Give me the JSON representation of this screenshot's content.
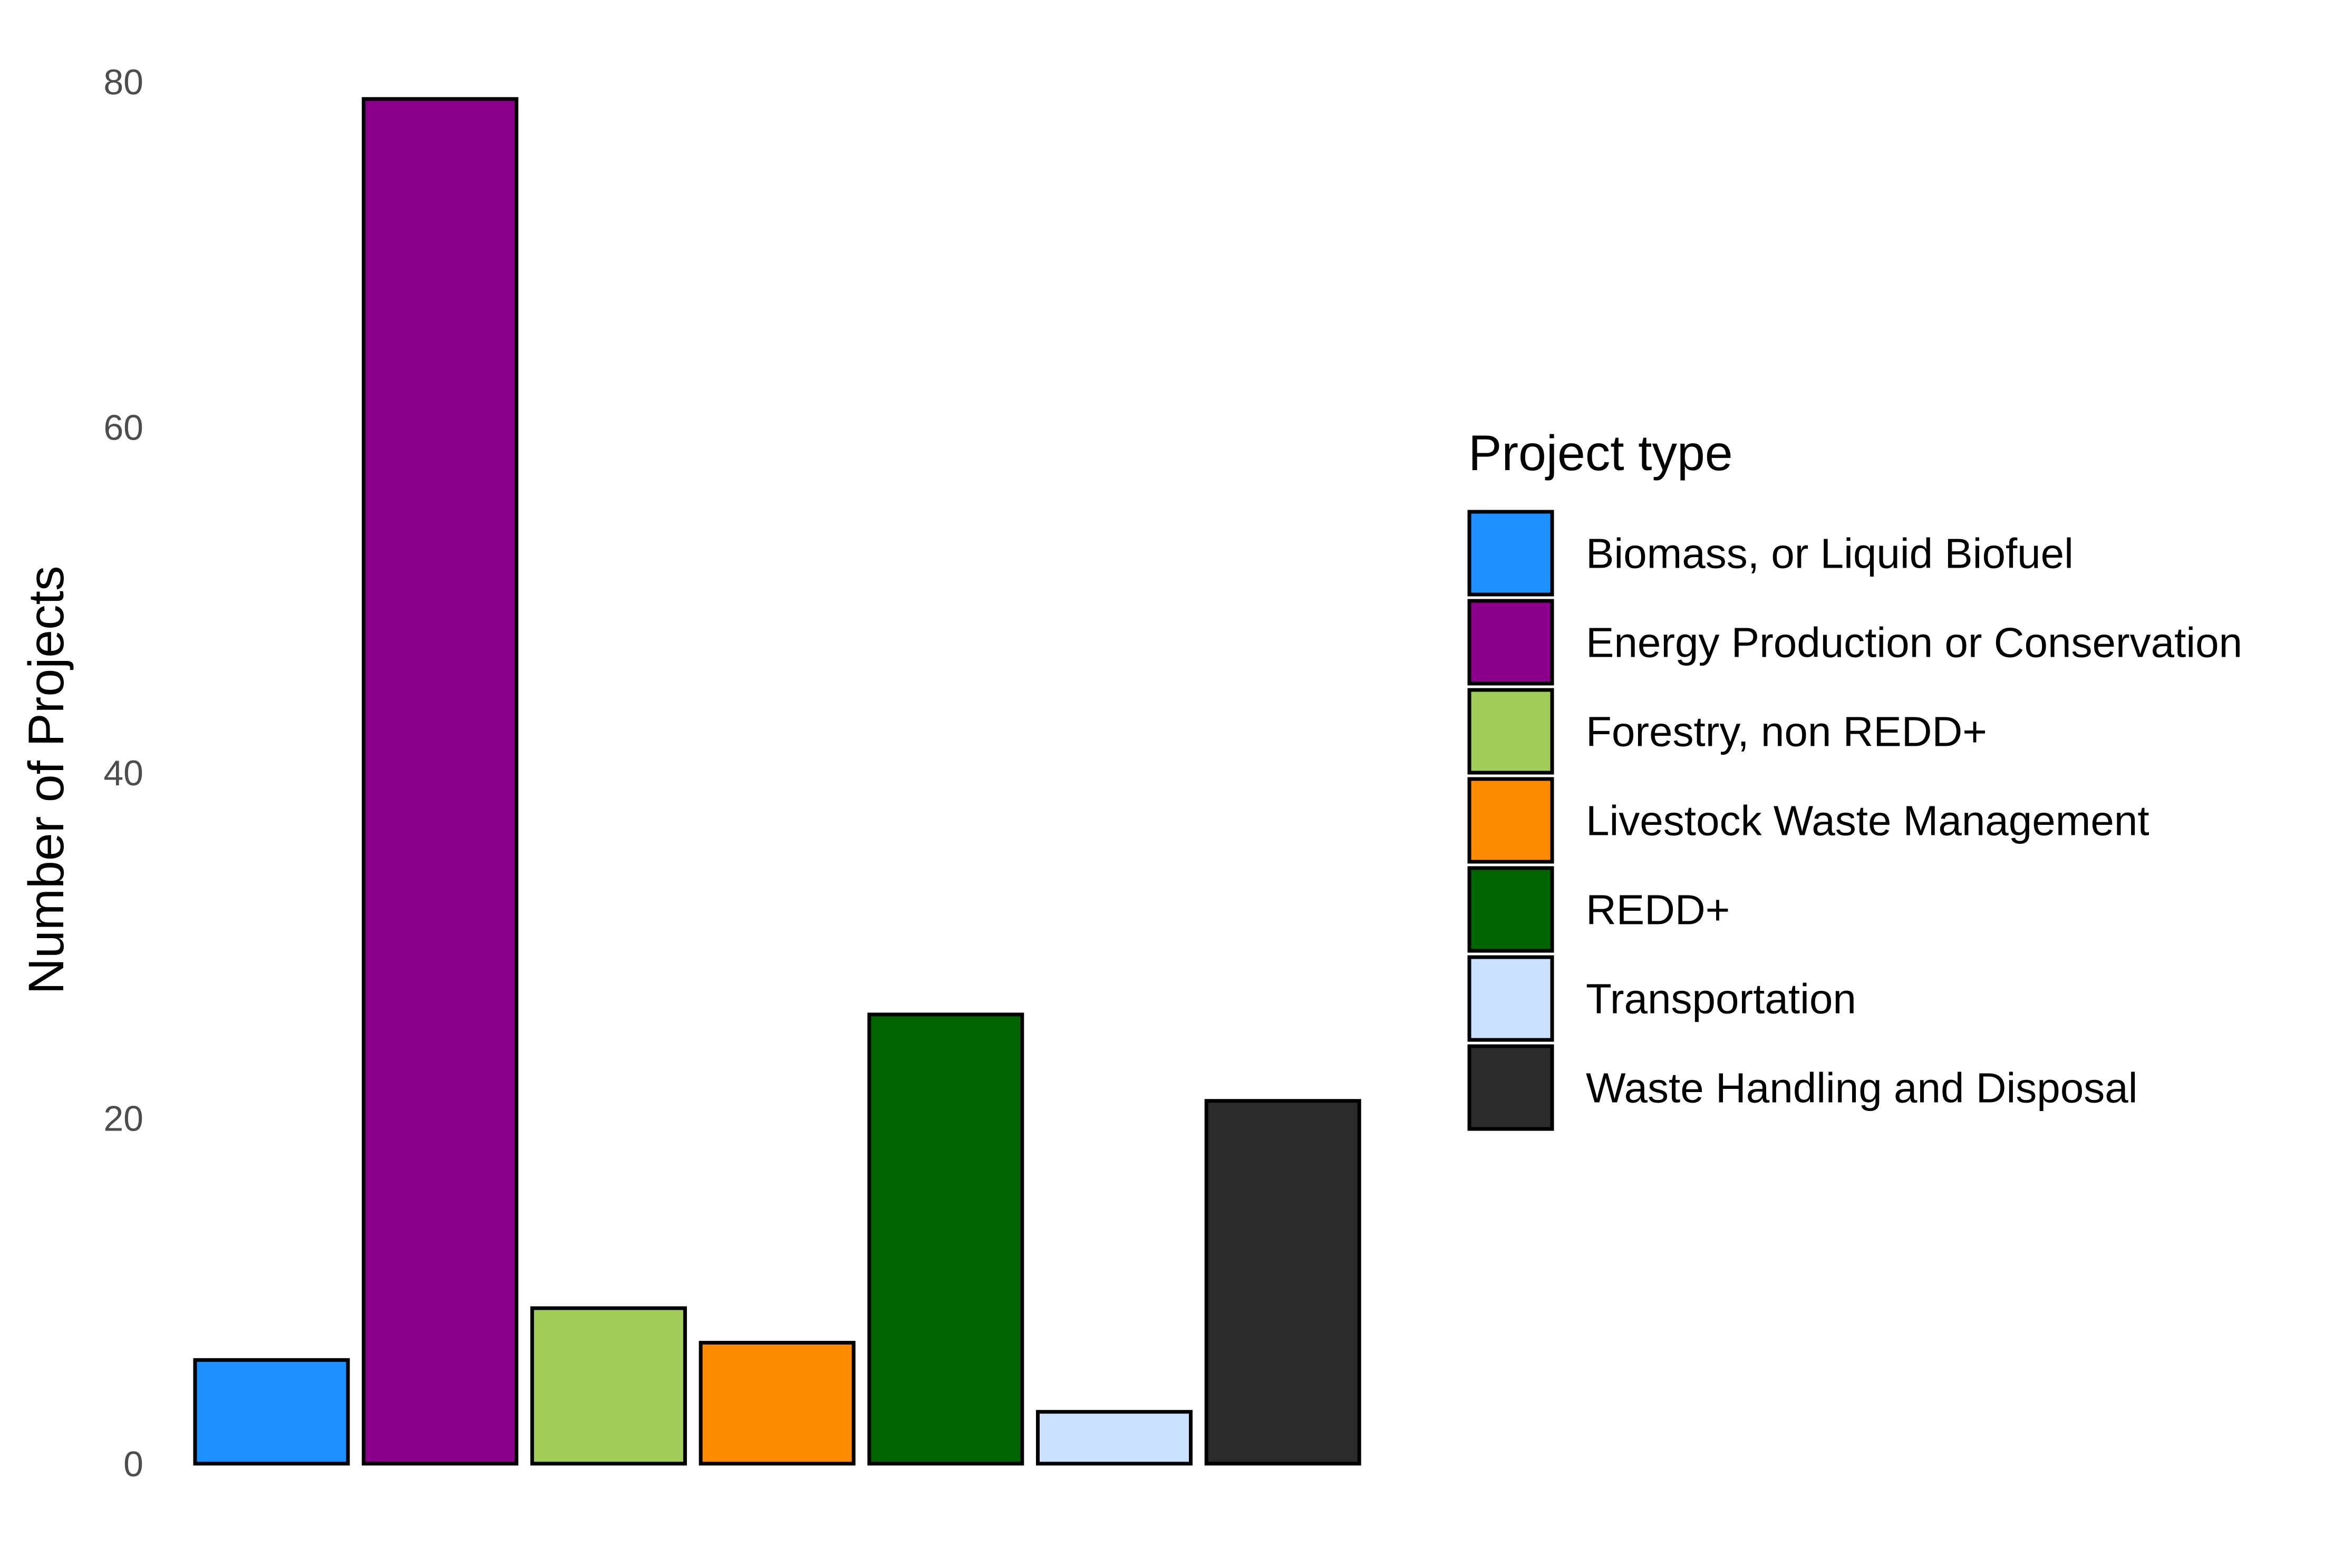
{
  "chart_data": {
    "type": "bar",
    "title": "",
    "xlabel": "",
    "ylabel": "Number of Projects",
    "ylim": [
      0,
      80
    ],
    "yticks": [
      0,
      20,
      40,
      60,
      80
    ],
    "grid": false,
    "legend_title": "Project type",
    "legend_position": "right",
    "categories": [
      "Biomass, or Liquid Biofuel",
      "Energy Production or Conservation",
      "Forestry, non REDD+",
      "Livestock Waste Management",
      "REDD+",
      "Transportation",
      "Waste Handling and Disposal"
    ],
    "values": [
      6,
      79,
      9,
      7,
      26,
      3,
      21
    ],
    "colors": [
      "#1E90FF",
      "#8B008B",
      "#A2CD5A",
      "#FF8C00",
      "#006400",
      "#CAE1FF",
      "#2B2B2B"
    ]
  }
}
